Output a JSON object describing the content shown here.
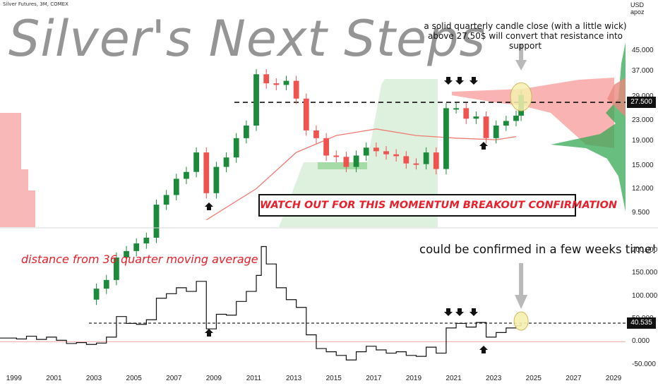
{
  "header": {
    "symbol_text": "Silver Futures, 3M, COMEX",
    "unit_currency": "USD",
    "unit_scale": "apoz"
  },
  "title": "Silver's Next Steps",
  "annotations": {
    "top_note": "a solid quarterly candle close (with a little wick) above 27.50$ will convert that resistance into support",
    "watch_box": "WATCH OUT FOR THIS MOMENTUM BREAKOUT CONFIRMATION",
    "indicator_label": "distance from 36 quarter moving average",
    "indicator_note": "could be confirmed in a few weeks time!"
  },
  "price_axis": {
    "ticks": [
      "45.000",
      "37.000",
      "29.000",
      "23.000",
      "19.000",
      "15.000",
      "12.000",
      "9.500"
    ],
    "badge": "27.500"
  },
  "indicator_axis": {
    "ticks": [
      "200.000",
      "150.000",
      "100.000",
      "50.000",
      "0.000",
      "-50.000"
    ],
    "badge": "40.535"
  },
  "x_axis": {
    "ticks": [
      "1999",
      "2001",
      "2003",
      "2005",
      "2007",
      "2009",
      "2011",
      "2013",
      "2015",
      "2017",
      "2019",
      "2021",
      "2023",
      "2025",
      "2027",
      "2029"
    ]
  },
  "colors": {
    "up": "#26a69a",
    "up_fill": "#1b8a3a",
    "down": "#ef5350",
    "cloud_red": "#f8a6a6",
    "cloud_green": "#9fd8a0",
    "ma_line": "#ef7b72",
    "highlight": "#f6f0b0"
  },
  "chart_data": [
    {
      "type": "candlestick",
      "title": "Silver's Next Steps",
      "series": [
        {
          "name": "Silver Futures, 3M, COMEX",
          "x": [
            "2003-Q1",
            "2003-Q3",
            "2004-Q1",
            "2004-Q3",
            "2005-Q1",
            "2005-Q3",
            "2006-Q1",
            "2006-Q3",
            "2007-Q1",
            "2007-Q3",
            "2008-Q1",
            "2008-Q3",
            "2009-Q1",
            "2009-Q3",
            "2010-Q1",
            "2010-Q3",
            "2011-Q1",
            "2011-Q3",
            "2012-Q1",
            "2012-Q3",
            "2013-Q1",
            "2013-Q3",
            "2014-Q1",
            "2014-Q3",
            "2015-Q1",
            "2015-Q3",
            "2016-Q1",
            "2016-Q3",
            "2017-Q1",
            "2017-Q3",
            "2018-Q1",
            "2018-Q3",
            "2019-Q1",
            "2019-Q3",
            "2020-Q1",
            "2020-Q3",
            "2021-Q1",
            "2021-Q3",
            "2022-Q1",
            "2022-Q3",
            "2023-Q1",
            "2023-Q3",
            "2024-Q1",
            "2024-Q2"
          ],
          "close": [
            4.6,
            5.0,
            6.2,
            6.6,
            7.1,
            7.5,
            10.3,
            11.3,
            13.2,
            14.1,
            17.0,
            11.5,
            14.8,
            16.2,
            19.5,
            22.0,
            36.0,
            33.0,
            32.5,
            33.8,
            28.5,
            21.0,
            19.5,
            16.5,
            16.3,
            14.8,
            16.5,
            17.8,
            17.2,
            16.7,
            16.4,
            15.3,
            15.2,
            17.0,
            14.5,
            26.0,
            26.0,
            23.5,
            24.0,
            19.5,
            22.0,
            23.0,
            24.2,
            29.5
          ],
          "unit": "USD/oz"
        },
        {
          "name": "36 quarter moving average",
          "x": [
            "2008-Q3",
            "2011-Q1",
            "2013-Q1",
            "2015-Q1",
            "2017-Q1",
            "2019-Q1",
            "2021-Q1",
            "2023-Q1",
            "2024-Q1"
          ],
          "values": [
            8.9,
            12.0,
            17.0,
            20.0,
            21.3,
            20.0,
            19.5,
            19.2,
            19.8
          ]
        },
        {
          "name": "resistance",
          "values": [
            27.5
          ]
        }
      ],
      "ylim": [
        8.3,
        56
      ],
      "yscale": "log",
      "y_ticks": [
        45,
        37,
        29,
        23,
        19,
        15,
        12,
        9.5
      ],
      "x_ticks": [
        1999,
        2001,
        2003,
        2005,
        2007,
        2009,
        2011,
        2013,
        2015,
        2017,
        2019,
        2021,
        2023,
        2025,
        2027,
        2029
      ],
      "xlim": [
        1998.3,
        2029.6
      ],
      "grid": false,
      "legend": "none"
    },
    {
      "type": "line",
      "title": "distance from 36 quarter moving average",
      "series": [
        {
          "name": "distance",
          "x": [
            "1998-Q3",
            "1999-Q1",
            "1999-Q3",
            "2000-Q1",
            "2000-Q3",
            "2001-Q1",
            "2001-Q3",
            "2002-Q1",
            "2002-Q3",
            "2003-Q1",
            "2003-Q3",
            "2004-Q1",
            "2004-Q3",
            "2005-Q1",
            "2005-Q3",
            "2006-Q1",
            "2006-Q3",
            "2007-Q1",
            "2007-Q3",
            "2008-Q1",
            "2008-Q3",
            "2009-Q1",
            "2009-Q3",
            "2010-Q1",
            "2010-Q3",
            "2011-Q1",
            "2011-Q2",
            "2011-Q3",
            "2012-Q1",
            "2012-Q3",
            "2013-Q1",
            "2013-Q3",
            "2014-Q1",
            "2014-Q3",
            "2015-Q1",
            "2015-Q3",
            "2016-Q1",
            "2016-Q3",
            "2017-Q1",
            "2017-Q3",
            "2018-Q1",
            "2018-Q3",
            "2019-Q1",
            "2019-Q3",
            "2020-Q1",
            "2020-Q3",
            "2021-Q1",
            "2021-Q3",
            "2022-Q1",
            "2022-Q3",
            "2023-Q1",
            "2023-Q3",
            "2024-Q1",
            "2024-Q2"
          ],
          "values": [
            8,
            6,
            12,
            5,
            10,
            3,
            -4,
            -2,
            -6,
            -3,
            10,
            55,
            40,
            38,
            48,
            95,
            105,
            118,
            110,
            132,
            28,
            60,
            58,
            88,
            110,
            145,
            208,
            170,
            118,
            92,
            75,
            15,
            -15,
            -22,
            -30,
            -40,
            -22,
            -10,
            -18,
            -25,
            -22,
            -30,
            -32,
            -12,
            -25,
            30,
            40,
            32,
            42,
            10,
            20,
            30,
            35,
            40.535
          ]
        },
        {
          "name": "reference",
          "values": [
            40.535
          ]
        }
      ],
      "ylim": [
        -55,
        215
      ],
      "y_ticks": [
        200,
        150,
        100,
        50,
        0,
        -50
      ],
      "x_ticks": [
        1999,
        2001,
        2003,
        2005,
        2007,
        2009,
        2011,
        2013,
        2015,
        2017,
        2019,
        2021,
        2023,
        2025,
        2027,
        2029
      ],
      "xlim": [
        1998.3,
        2029.6
      ],
      "grid": false,
      "legend": "none"
    }
  ]
}
